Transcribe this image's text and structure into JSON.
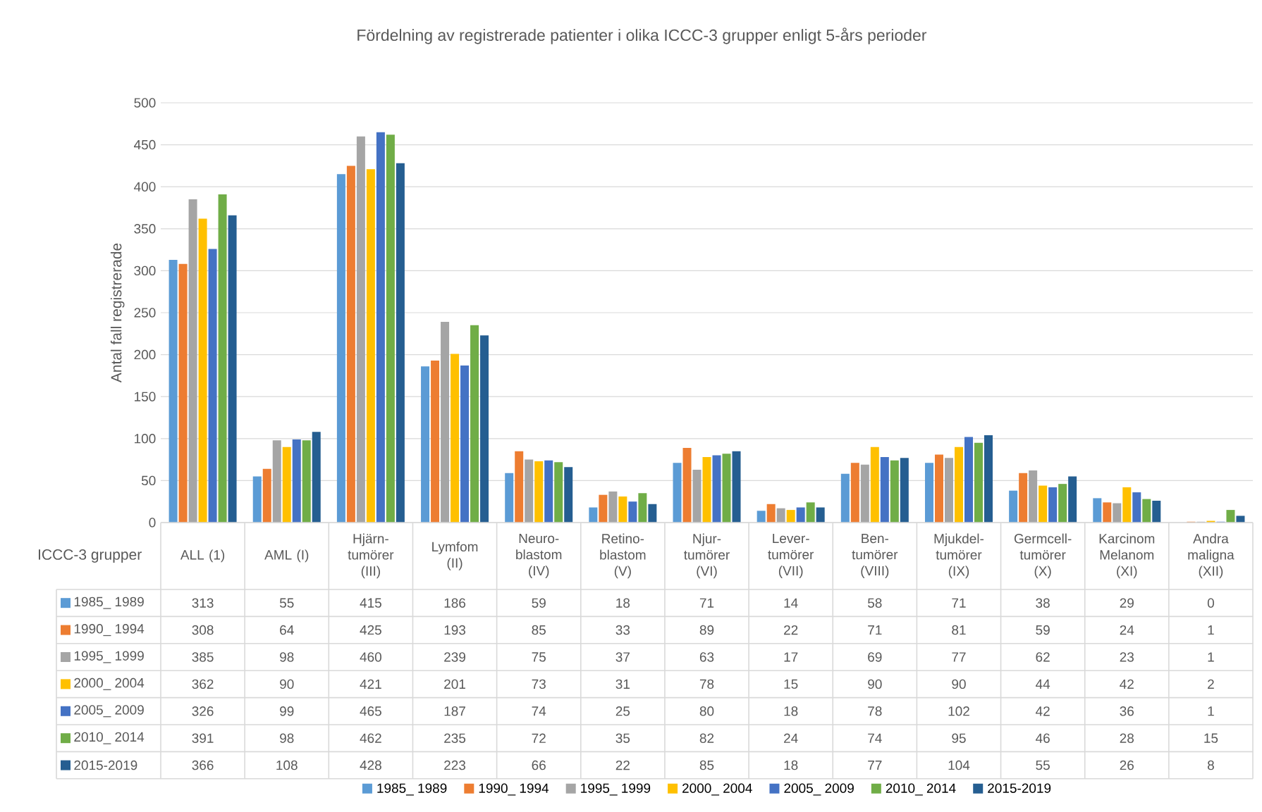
{
  "chart_data": {
    "type": "bar",
    "title": "Fördelning av registrerade patienter i olika ICCC-3 grupper enligt 5-års perioder",
    "xlabel": "ICCC-3 grupper",
    "ylabel": "Antal fall registrerade",
    "categories": [
      "ALL (1)",
      "AML (I)",
      "Hjärn- tumörer (III)",
      "Lymfom (II)",
      "Neuro- blastom (IV)",
      "Retino- blastom (V)",
      "Njur- tumörer (VI)",
      "Lever- tumörer (VII)",
      "Ben- tumörer (VIII)",
      "Mjukdel- tumörer (IX)",
      "Germcell- tumörer (X)",
      "Karcinom Melanom (XI)",
      "Andra maligna (XII)"
    ],
    "series": [
      {
        "name": "1985_ 1989",
        "color": "#5b9bd5",
        "values": [
          313,
          55,
          415,
          186,
          59,
          18,
          71,
          14,
          58,
          71,
          38,
          29,
          0
        ]
      },
      {
        "name": "1990_ 1994",
        "color": "#ed7d31",
        "values": [
          308,
          64,
          425,
          193,
          85,
          33,
          89,
          22,
          71,
          81,
          59,
          24,
          1
        ]
      },
      {
        "name": "1995_ 1999",
        "color": "#a5a5a5",
        "values": [
          385,
          98,
          460,
          239,
          75,
          37,
          63,
          17,
          69,
          77,
          62,
          23,
          1
        ]
      },
      {
        "name": "2000_ 2004",
        "color": "#ffc000",
        "values": [
          362,
          90,
          421,
          201,
          73,
          31,
          78,
          15,
          90,
          90,
          44,
          42,
          2
        ]
      },
      {
        "name": "2005_ 2009",
        "color": "#4472c4",
        "values": [
          326,
          99,
          465,
          187,
          74,
          25,
          80,
          18,
          78,
          102,
          42,
          36,
          1
        ]
      },
      {
        "name": "2010_ 2014",
        "color": "#70ad47",
        "values": [
          391,
          98,
          462,
          235,
          72,
          35,
          82,
          24,
          74,
          95,
          46,
          28,
          15
        ]
      },
      {
        "name": "2015-2019",
        "color": "#255e91",
        "values": [
          366,
          108,
          428,
          223,
          66,
          22,
          85,
          18,
          77,
          104,
          55,
          26,
          8
        ]
      }
    ],
    "ylim": [
      0,
      500
    ],
    "yticks": [
      0,
      50,
      100,
      150,
      200,
      250,
      300,
      350,
      400,
      450,
      500
    ],
    "grid": "y",
    "legend": "bottom",
    "data_labels": true
  }
}
